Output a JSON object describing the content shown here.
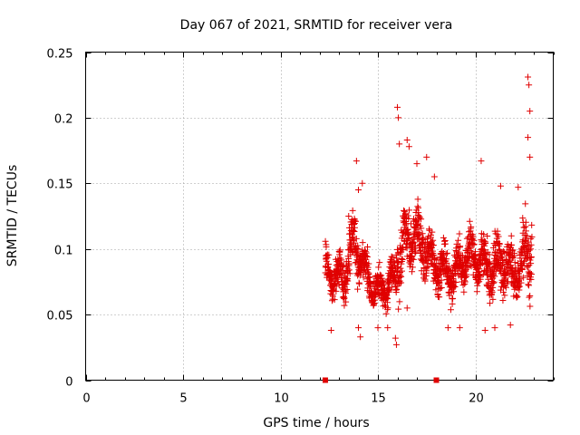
{
  "chart_data": {
    "type": "scatter",
    "title": "Day 067 of 2021, SRMTID for receiver vera",
    "xlabel": "GPS time / hours",
    "ylabel": "SRMTID / TECUs",
    "xlim": [
      0,
      24
    ],
    "ylim": [
      0,
      0.25
    ],
    "xticks": [
      0,
      5,
      10,
      15,
      20
    ],
    "yticks": [
      0,
      0.05,
      0.1,
      0.15,
      0.2,
      0.25
    ],
    "grid": true,
    "marker": "plus",
    "color": "#e00000",
    "data_start_hour": 12.3,
    "data_end_hour": 22.9,
    "outage_markers": [
      12.3,
      18.0
    ],
    "summary": {
      "count_approx": 1500,
      "y_min_approx": 0.027,
      "y_max_approx": 0.231
    },
    "segments": [
      {
        "start": 12.3,
        "end": 18.0
      },
      {
        "start": 18.0,
        "end": 22.9
      }
    ],
    "profile": [
      {
        "x": 12.3,
        "mean": 0.085,
        "spread": 0.03
      },
      {
        "x": 12.8,
        "mean": 0.075,
        "spread": 0.025
      },
      {
        "x": 13.3,
        "mean": 0.08,
        "spread": 0.028
      },
      {
        "x": 13.8,
        "mean": 0.105,
        "spread": 0.035
      },
      {
        "x": 14.3,
        "mean": 0.085,
        "spread": 0.025
      },
      {
        "x": 14.8,
        "mean": 0.068,
        "spread": 0.018
      },
      {
        "x": 15.3,
        "mean": 0.07,
        "spread": 0.02
      },
      {
        "x": 15.8,
        "mean": 0.075,
        "spread": 0.025
      },
      {
        "x": 16.3,
        "mean": 0.105,
        "spread": 0.04
      },
      {
        "x": 16.8,
        "mean": 0.115,
        "spread": 0.035
      },
      {
        "x": 17.3,
        "mean": 0.1,
        "spread": 0.035
      },
      {
        "x": 17.8,
        "mean": 0.09,
        "spread": 0.03
      },
      {
        "x": 18.3,
        "mean": 0.085,
        "spread": 0.03
      },
      {
        "x": 18.8,
        "mean": 0.08,
        "spread": 0.025
      },
      {
        "x": 19.3,
        "mean": 0.09,
        "spread": 0.03
      },
      {
        "x": 19.8,
        "mean": 0.095,
        "spread": 0.03
      },
      {
        "x": 20.3,
        "mean": 0.09,
        "spread": 0.03
      },
      {
        "x": 20.8,
        "mean": 0.085,
        "spread": 0.03
      },
      {
        "x": 21.3,
        "mean": 0.09,
        "spread": 0.03
      },
      {
        "x": 21.8,
        "mean": 0.08,
        "spread": 0.03
      },
      {
        "x": 22.3,
        "mean": 0.085,
        "spread": 0.03
      },
      {
        "x": 22.9,
        "mean": 0.11,
        "spread": 0.06
      }
    ],
    "peaks": [
      {
        "x": 13.5,
        "y": 0.125
      },
      {
        "x": 13.9,
        "y": 0.167
      },
      {
        "x": 14.0,
        "y": 0.145
      },
      {
        "x": 14.2,
        "y": 0.15
      },
      {
        "x": 16.0,
        "y": 0.208
      },
      {
        "x": 16.05,
        "y": 0.2
      },
      {
        "x": 16.1,
        "y": 0.18
      },
      {
        "x": 16.5,
        "y": 0.183
      },
      {
        "x": 16.6,
        "y": 0.178
      },
      {
        "x": 17.0,
        "y": 0.165
      },
      {
        "x": 17.5,
        "y": 0.17
      },
      {
        "x": 17.9,
        "y": 0.155
      },
      {
        "x": 20.3,
        "y": 0.167
      },
      {
        "x": 21.3,
        "y": 0.148
      },
      {
        "x": 22.2,
        "y": 0.147
      },
      {
        "x": 22.7,
        "y": 0.231
      },
      {
        "x": 22.75,
        "y": 0.225
      },
      {
        "x": 22.8,
        "y": 0.205
      },
      {
        "x": 22.7,
        "y": 0.185
      },
      {
        "x": 22.8,
        "y": 0.17
      }
    ],
    "troughs": [
      {
        "x": 12.6,
        "y": 0.038
      },
      {
        "x": 14.0,
        "y": 0.04
      },
      {
        "x": 14.1,
        "y": 0.033
      },
      {
        "x": 15.0,
        "y": 0.04
      },
      {
        "x": 15.5,
        "y": 0.04
      },
      {
        "x": 15.9,
        "y": 0.032
      },
      {
        "x": 15.95,
        "y": 0.027
      },
      {
        "x": 16.5,
        "y": 0.055
      },
      {
        "x": 18.6,
        "y": 0.04
      },
      {
        "x": 19.2,
        "y": 0.04
      },
      {
        "x": 20.5,
        "y": 0.038
      },
      {
        "x": 21.0,
        "y": 0.04
      },
      {
        "x": 21.8,
        "y": 0.042
      }
    ]
  }
}
